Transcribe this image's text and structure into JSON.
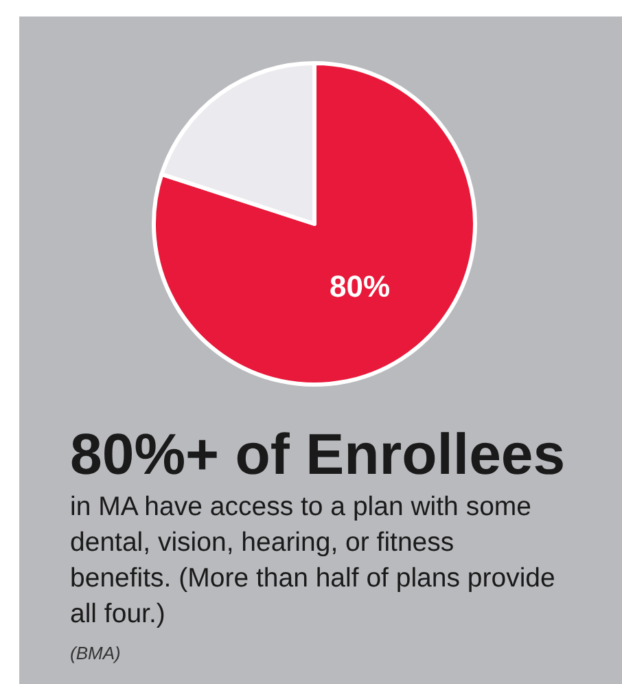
{
  "chart_data": {
    "type": "pie",
    "title": "80%+ of Enrollees",
    "subtitle": "in MA have access to a plan with some dental, vision, hearing, or fitness benefits. (More than half of plans provide all four.)",
    "annotations": [
      "(BMA)"
    ],
    "categories": [
      null,
      null
    ],
    "values": [
      80,
      20
    ],
    "colors": [
      "#e8193a",
      "#ebebef"
    ],
    "value_labels": [
      "80%",
      null
    ]
  }
}
